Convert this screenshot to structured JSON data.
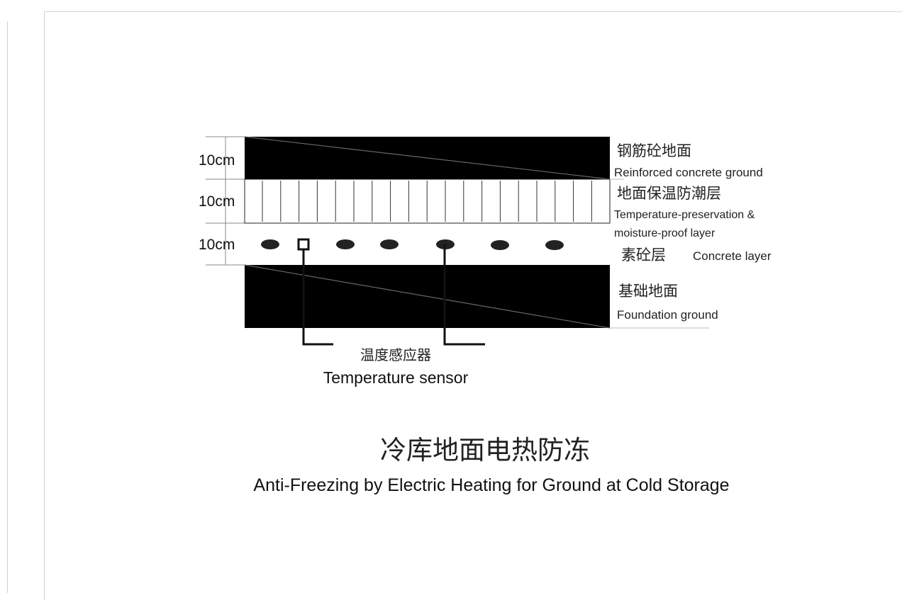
{
  "layers": [
    {
      "thickness": "10cm",
      "cn": "钢筋砼地面",
      "en": "Reinforced concrete ground"
    },
    {
      "thickness": "10cm",
      "cn": "地面保温防潮层",
      "en_line1": "Temperature-preservation &",
      "en_line2": "moisture-proof layer"
    },
    {
      "thickness": "10cm",
      "cn": "素砼层",
      "en": "Concrete layer"
    },
    {
      "cn": "基础地面",
      "en": "Foundation ground"
    }
  ],
  "sensor": {
    "cn": "温度感应器",
    "en": "Temperature sensor"
  },
  "caption": {
    "cn": "冷库地面电热防冻",
    "en": "Anti-Freezing by Electric Heating for Ground at Cold Storage"
  },
  "colors": {
    "ink": "#000000",
    "frame": "#cfcfcf",
    "line": "#444444"
  }
}
